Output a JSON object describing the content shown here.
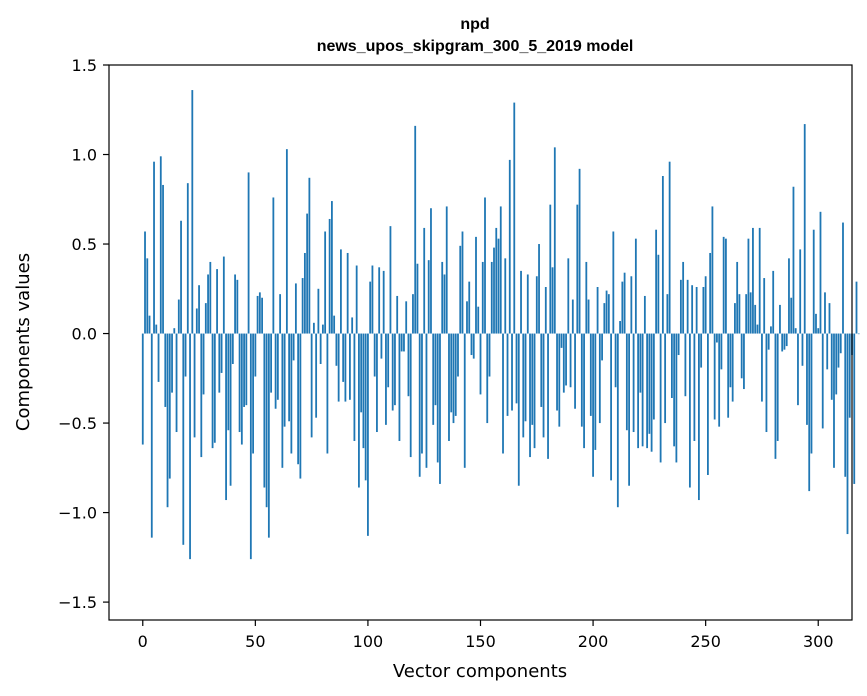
{
  "chart_data": {
    "type": "bar",
    "title": "npd",
    "subtitle": "news_upos_skipgram_300_5_2019 model",
    "xlabel": "Vector components",
    "ylabel": "Components values",
    "xlim": [
      -15,
      315
    ],
    "ylim": [
      -1.6,
      1.5
    ],
    "xticks": [
      0,
      50,
      100,
      150,
      200,
      250,
      300
    ],
    "xtick_labels": [
      "0",
      "50",
      "100",
      "150",
      "200",
      "250",
      "300"
    ],
    "yticks": [
      1.5,
      1.0,
      0.5,
      0.0,
      -0.5,
      -1.0,
      -1.5
    ],
    "ytick_labels": [
      "1.5",
      "1.0",
      "0.5",
      "0.0",
      "−0.5",
      "−1.0",
      "−1.5"
    ],
    "grid": false,
    "bar_color": "#1f77b4",
    "series": [
      {
        "values": [
          -0.62,
          0.57,
          0.42,
          0.1,
          -1.14,
          0.96,
          0.05,
          -0.27,
          0.99,
          0.83,
          -0.41,
          -0.97,
          -0.81,
          -0.33,
          0.03,
          -0.55,
          0.19,
          0.63,
          -1.18,
          -0.24,
          0.84,
          -1.26,
          1.36,
          -0.58,
          0.14,
          0.27,
          -0.69,
          -0.34,
          0.17,
          0.33,
          0.4,
          -0.64,
          -0.61,
          0.36,
          -0.33,
          -0.22,
          0.43,
          -0.93,
          -0.54,
          -0.85,
          -0.17,
          0.33,
          0.3,
          -0.55,
          -0.62,
          -0.41,
          -0.4,
          0.9,
          -1.26,
          -0.67,
          -0.24,
          0.21,
          0.23,
          0.2,
          -0.86,
          -0.97,
          -1.14,
          -0.33,
          0.76,
          -0.42,
          -0.37,
          0.22,
          -0.75,
          -0.52,
          1.03,
          -0.49,
          -0.67,
          -0.15,
          0.28,
          -0.73,
          -0.81,
          0.31,
          0.45,
          0.67,
          0.87,
          -0.58,
          0.06,
          -0.47,
          0.25,
          -0.17,
          0.05,
          0.57,
          -0.67,
          0.64,
          0.74,
          0.1,
          -0.18,
          -0.38,
          0.47,
          -0.27,
          -0.38,
          0.45,
          -0.37,
          0.09,
          -0.6,
          0.38,
          -0.86,
          -0.44,
          -0.64,
          -0.82,
          -1.13,
          0.29,
          0.38,
          -0.24,
          -0.55,
          0.37,
          -0.14,
          0.35,
          -0.51,
          -0.3,
          0.6,
          -0.43,
          -0.4,
          0.21,
          -0.6,
          -0.1,
          -0.1,
          0.18,
          -0.35,
          -0.69,
          0.22,
          1.16,
          0.39,
          -0.8,
          -0.67,
          0.59,
          -0.75,
          0.41,
          0.7,
          -0.51,
          -0.4,
          -0.72,
          -0.84,
          0.4,
          0.33,
          0.71,
          -0.6,
          -0.44,
          -0.5,
          -0.46,
          -0.24,
          0.49,
          0.57,
          -0.75,
          0.18,
          0.29,
          -0.12,
          -0.14,
          0.54,
          0.15,
          -0.34,
          0.4,
          0.76,
          -0.5,
          -0.24,
          0.4,
          0.48,
          0.59,
          0.53,
          0.71,
          -0.67,
          0.42,
          -0.46,
          0.97,
          -0.43,
          1.29,
          -0.39,
          -0.85,
          0.35,
          -0.58,
          -0.49,
          0.33,
          -0.69,
          -0.51,
          -0.64,
          0.32,
          0.5,
          -0.41,
          -0.58,
          0.26,
          -0.7,
          0.72,
          0.37,
          1.04,
          -0.43,
          -0.52,
          -0.08,
          -0.33,
          -0.29,
          0.42,
          -0.3,
          0.19,
          -0.42,
          0.72,
          0.92,
          -0.52,
          -0.64,
          0.4,
          0.19,
          -0.46,
          -0.8,
          -0.65,
          0.26,
          -0.5,
          -0.15,
          0.17,
          0.24,
          0.22,
          -0.82,
          0.57,
          -0.3,
          -0.97,
          0.07,
          0.29,
          0.34,
          -0.54,
          -0.85,
          0.32,
          -0.55,
          0.53,
          -0.64,
          -0.33,
          -0.63,
          0.21,
          -0.64,
          -0.56,
          -0.66,
          -0.48,
          0.58,
          0.44,
          -0.72,
          0.88,
          -0.5,
          0.22,
          0.96,
          -0.36,
          -0.63,
          -0.72,
          -0.12,
          0.3,
          0.4,
          -0.35,
          0.3,
          -0.86,
          0.27,
          -0.6,
          0.26,
          -0.93,
          -0.19,
          0.26,
          0.32,
          -0.79,
          0.45,
          0.71,
          -0.48,
          -0.05,
          -0.52,
          -0.2,
          0.54,
          0.53,
          -0.47,
          -0.3,
          -0.38,
          0.17,
          0.4,
          0.22,
          -0.25,
          -0.31,
          0.22,
          0.53,
          0.23,
          0.59,
          0.16,
          0.05,
          0.59,
          -0.38,
          0.31,
          -0.55,
          -0.09,
          0.04,
          0.35,
          -0.7,
          -0.6,
          0.16,
          -0.1,
          -0.09,
          -0.07,
          0.42,
          0.2,
          0.82,
          0.03,
          -0.4,
          0.47,
          -0.18,
          1.17,
          -0.51,
          -0.88,
          -0.67,
          0.58,
          0.11,
          0.03,
          0.68,
          -0.53,
          0.23,
          -0.2,
          0.17,
          -0.37,
          -0.75,
          -0.34,
          -0.19,
          -0.11,
          0.62,
          -0.8,
          -1.12,
          -0.47,
          -0.12,
          -0.84,
          0.29,
          0.0
        ]
      }
    ]
  }
}
